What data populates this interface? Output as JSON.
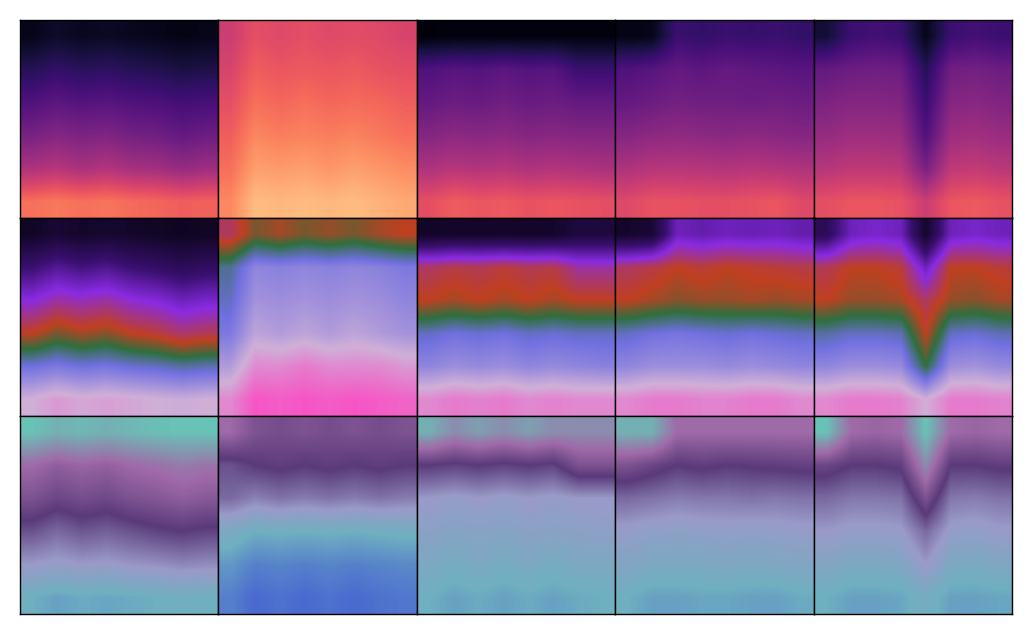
{
  "chart_data": [
    {
      "type": "heatmap",
      "clim": [
        0,
        1
      ],
      "tick_labels": false,
      "cells": [
        [
          0.05,
          0.08,
          0.06,
          0.07,
          0.06,
          0.05,
          0.04,
          0.05
        ],
        [
          0.15,
          0.18,
          0.16,
          0.17,
          0.15,
          0.14,
          0.12,
          0.13
        ],
        [
          0.25,
          0.28,
          0.26,
          0.27,
          0.25,
          0.24,
          0.22,
          0.23
        ],
        [
          0.35,
          0.38,
          0.36,
          0.37,
          0.34,
          0.33,
          0.3,
          0.32
        ],
        [
          0.48,
          0.5,
          0.47,
          0.49,
          0.46,
          0.45,
          0.42,
          0.44
        ],
        [
          0.7,
          0.72,
          0.7,
          0.71,
          0.69,
          0.68,
          0.66,
          0.67
        ]
      ]
    },
    {
      "type": "heatmap",
      "clim": [
        0,
        1
      ],
      "tick_labels": false,
      "cells": [
        [
          0.55,
          0.62,
          0.6,
          0.62,
          0.6,
          0.61,
          0.6,
          0.58
        ],
        [
          0.58,
          0.66,
          0.64,
          0.65,
          0.64,
          0.65,
          0.63,
          0.62
        ],
        [
          0.62,
          0.7,
          0.68,
          0.7,
          0.68,
          0.69,
          0.68,
          0.66
        ],
        [
          0.66,
          0.75,
          0.73,
          0.74,
          0.73,
          0.74,
          0.72,
          0.7
        ],
        [
          0.7,
          0.8,
          0.79,
          0.8,
          0.78,
          0.8,
          0.78,
          0.76
        ],
        [
          0.75,
          0.86,
          0.85,
          0.86,
          0.85,
          0.86,
          0.84,
          0.82
        ]
      ]
    },
    {
      "type": "heatmap",
      "clim": [
        0,
        1
      ],
      "tick_labels": false,
      "cells": [
        [
          0.02,
          0.03,
          0.03,
          0.03,
          0.03,
          0.03,
          0.03,
          0.03
        ],
        [
          0.25,
          0.27,
          0.26,
          0.28,
          0.26,
          0.27,
          0.2,
          0.2
        ],
        [
          0.3,
          0.32,
          0.31,
          0.33,
          0.31,
          0.32,
          0.3,
          0.3
        ],
        [
          0.38,
          0.4,
          0.39,
          0.4,
          0.38,
          0.39,
          0.38,
          0.38
        ],
        [
          0.48,
          0.5,
          0.49,
          0.5,
          0.48,
          0.49,
          0.48,
          0.47
        ],
        [
          0.62,
          0.66,
          0.64,
          0.65,
          0.63,
          0.64,
          0.63,
          0.62
        ]
      ]
    },
    {
      "type": "heatmap",
      "clim": [
        0,
        1
      ],
      "tick_labels": false,
      "cells": [
        [
          0.04,
          0.05,
          0.2,
          0.18,
          0.2,
          0.19,
          0.2,
          0.18
        ],
        [
          0.25,
          0.27,
          0.3,
          0.28,
          0.3,
          0.29,
          0.28,
          0.27
        ],
        [
          0.3,
          0.32,
          0.34,
          0.33,
          0.33,
          0.32,
          0.33,
          0.32
        ],
        [
          0.38,
          0.4,
          0.41,
          0.4,
          0.39,
          0.4,
          0.39,
          0.38
        ],
        [
          0.48,
          0.5,
          0.5,
          0.5,
          0.49,
          0.5,
          0.49,
          0.48
        ],
        [
          0.6,
          0.63,
          0.63,
          0.62,
          0.62,
          0.63,
          0.64,
          0.6
        ]
      ]
    },
    {
      "type": "heatmap",
      "clim": [
        0,
        1
      ],
      "tick_labels": false,
      "cells": [
        [
          0.1,
          0.2,
          0.22,
          0.2,
          0.05,
          0.2,
          0.22,
          0.2
        ],
        [
          0.3,
          0.32,
          0.33,
          0.32,
          0.15,
          0.33,
          0.34,
          0.32
        ],
        [
          0.36,
          0.38,
          0.38,
          0.37,
          0.2,
          0.38,
          0.39,
          0.37
        ],
        [
          0.42,
          0.44,
          0.44,
          0.43,
          0.25,
          0.44,
          0.45,
          0.43
        ],
        [
          0.5,
          0.52,
          0.52,
          0.51,
          0.35,
          0.52,
          0.53,
          0.51
        ],
        [
          0.62,
          0.64,
          0.64,
          0.63,
          0.55,
          0.64,
          0.65,
          0.63
        ]
      ]
    },
    {
      "type": "heatmap",
      "clim": [
        0,
        1
      ],
      "tick_labels": false,
      "cells": [
        [
          0.05,
          0.08,
          0.06,
          0.07,
          0.06,
          0.05,
          0.04,
          0.05
        ],
        [
          0.2,
          0.25,
          0.22,
          0.24,
          0.2,
          0.18,
          0.15,
          0.17
        ],
        [
          0.35,
          0.4,
          0.38,
          0.4,
          0.36,
          0.34,
          0.3,
          0.32
        ],
        [
          0.5,
          0.55,
          0.52,
          0.54,
          0.5,
          0.48,
          0.44,
          0.46
        ],
        [
          0.7,
          0.72,
          0.7,
          0.71,
          0.69,
          0.68,
          0.66,
          0.67
        ],
        [
          0.85,
          0.88,
          0.86,
          0.87,
          0.86,
          0.85,
          0.84,
          0.85
        ]
      ]
    },
    {
      "type": "heatmap",
      "clim": [
        0,
        1
      ],
      "tick_labels": false,
      "cells": [
        [
          0.45,
          0.55,
          0.52,
          0.55,
          0.53,
          0.55,
          0.52,
          0.5
        ],
        [
          0.65,
          0.75,
          0.74,
          0.75,
          0.74,
          0.75,
          0.74,
          0.72
        ],
        [
          0.68,
          0.78,
          0.77,
          0.78,
          0.77,
          0.78,
          0.77,
          0.75
        ],
        [
          0.72,
          0.82,
          0.8,
          0.82,
          0.8,
          0.82,
          0.8,
          0.78
        ],
        [
          0.8,
          0.9,
          0.9,
          0.92,
          0.9,
          0.9,
          0.9,
          0.88
        ],
        [
          0.9,
          0.97,
          0.96,
          0.97,
          0.96,
          0.97,
          0.96,
          0.95
        ]
      ]
    },
    {
      "type": "heatmap",
      "clim": [
        0,
        1
      ],
      "tick_labels": false,
      "cells": [
        [
          0.05,
          0.06,
          0.06,
          0.06,
          0.06,
          0.06,
          0.1,
          0.1
        ],
        [
          0.45,
          0.47,
          0.46,
          0.48,
          0.46,
          0.47,
          0.4,
          0.4
        ],
        [
          0.5,
          0.52,
          0.5,
          0.52,
          0.5,
          0.52,
          0.5,
          0.5
        ],
        [
          0.68,
          0.7,
          0.69,
          0.7,
          0.68,
          0.69,
          0.68,
          0.68
        ],
        [
          0.75,
          0.77,
          0.76,
          0.77,
          0.75,
          0.76,
          0.75,
          0.74
        ],
        [
          0.9,
          0.92,
          0.91,
          0.92,
          0.9,
          0.91,
          0.9,
          0.9
        ]
      ]
    },
    {
      "type": "heatmap",
      "clim": [
        0,
        1
      ],
      "tick_labels": false,
      "cells": [
        [
          0.06,
          0.08,
          0.3,
          0.28,
          0.3,
          0.29,
          0.3,
          0.28
        ],
        [
          0.45,
          0.47,
          0.5,
          0.48,
          0.5,
          0.49,
          0.48,
          0.47
        ],
        [
          0.5,
          0.52,
          0.54,
          0.53,
          0.53,
          0.52,
          0.53,
          0.52
        ],
        [
          0.68,
          0.7,
          0.71,
          0.7,
          0.69,
          0.7,
          0.69,
          0.68
        ],
        [
          0.75,
          0.77,
          0.77,
          0.77,
          0.76,
          0.77,
          0.76,
          0.75
        ],
        [
          0.9,
          0.92,
          0.92,
          0.91,
          0.91,
          0.92,
          0.92,
          0.9
        ]
      ]
    },
    {
      "type": "heatmap",
      "clim": [
        0,
        1
      ],
      "tick_labels": false,
      "cells": [
        [
          0.15,
          0.3,
          0.32,
          0.3,
          0.06,
          0.3,
          0.32,
          0.3
        ],
        [
          0.46,
          0.5,
          0.5,
          0.48,
          0.3,
          0.5,
          0.5,
          0.48
        ],
        [
          0.5,
          0.53,
          0.53,
          0.52,
          0.45,
          0.53,
          0.54,
          0.52
        ],
        [
          0.66,
          0.68,
          0.68,
          0.67,
          0.5,
          0.68,
          0.69,
          0.67
        ],
        [
          0.75,
          0.77,
          0.77,
          0.76,
          0.6,
          0.77,
          0.78,
          0.76
        ],
        [
          0.9,
          0.92,
          0.92,
          0.91,
          0.85,
          0.92,
          0.92,
          0.91
        ]
      ]
    },
    {
      "type": "heatmap",
      "clim": [
        0,
        1
      ],
      "tick_labels": false,
      "cells": [
        [
          0.05,
          0.1,
          0.08,
          0.1,
          0.08,
          0.06,
          0.05,
          0.05
        ],
        [
          0.3,
          0.35,
          0.32,
          0.34,
          0.3,
          0.28,
          0.25,
          0.27
        ],
        [
          0.4,
          0.45,
          0.42,
          0.44,
          0.4,
          0.38,
          0.35,
          0.37
        ],
        [
          0.55,
          0.6,
          0.56,
          0.58,
          0.55,
          0.52,
          0.5,
          0.52
        ],
        [
          0.7,
          0.72,
          0.7,
          0.71,
          0.69,
          0.68,
          0.66,
          0.67
        ],
        [
          0.85,
          0.88,
          0.86,
          0.87,
          0.86,
          0.85,
          0.84,
          0.85
        ]
      ]
    },
    {
      "type": "heatmap",
      "clim": [
        0,
        1
      ],
      "tick_labels": false,
      "cells": [
        [
          0.3,
          0.4,
          0.42,
          0.4,
          0.42,
          0.4,
          0.42,
          0.4
        ],
        [
          0.55,
          0.5,
          0.48,
          0.5,
          0.48,
          0.5,
          0.48,
          0.5
        ],
        [
          0.6,
          0.65,
          0.62,
          0.64,
          0.62,
          0.64,
          0.62,
          0.64
        ],
        [
          0.8,
          0.85,
          0.84,
          0.85,
          0.84,
          0.85,
          0.84,
          0.83
        ],
        [
          0.9,
          0.95,
          0.94,
          0.95,
          0.94,
          0.95,
          0.94,
          0.93
        ],
        [
          0.95,
          1.0,
          0.98,
          1.0,
          0.98,
          1.0,
          0.98,
          0.97
        ]
      ]
    },
    {
      "type": "heatmap",
      "clim": [
        0,
        1
      ],
      "tick_labels": false,
      "cells": [
        [
          0.1,
          0.2,
          0.15,
          0.2,
          0.15,
          0.2,
          0.2,
          0.2
        ],
        [
          0.5,
          0.52,
          0.5,
          0.52,
          0.5,
          0.52,
          0.4,
          0.4
        ],
        [
          0.7,
          0.72,
          0.7,
          0.72,
          0.7,
          0.72,
          0.7,
          0.7
        ],
        [
          0.75,
          0.77,
          0.76,
          0.77,
          0.75,
          0.76,
          0.75,
          0.74
        ],
        [
          0.8,
          0.82,
          0.8,
          0.82,
          0.8,
          0.82,
          0.8,
          0.8
        ],
        [
          0.85,
          0.88,
          0.86,
          0.88,
          0.86,
          0.88,
          0.86,
          0.85
        ]
      ]
    },
    {
      "type": "heatmap",
      "clim": [
        0,
        1
      ],
      "tick_labels": false,
      "cells": [
        [
          0.1,
          0.1,
          0.3,
          0.3,
          0.3,
          0.3,
          0.3,
          0.3
        ],
        [
          0.4,
          0.45,
          0.5,
          0.48,
          0.5,
          0.49,
          0.48,
          0.47
        ],
        [
          0.6,
          0.62,
          0.64,
          0.63,
          0.63,
          0.62,
          0.63,
          0.62
        ],
        [
          0.72,
          0.74,
          0.75,
          0.74,
          0.73,
          0.74,
          0.73,
          0.72
        ],
        [
          0.78,
          0.8,
          0.8,
          0.8,
          0.79,
          0.8,
          0.79,
          0.78
        ],
        [
          0.85,
          0.88,
          0.88,
          0.87,
          0.87,
          0.88,
          0.88,
          0.86
        ]
      ]
    },
    {
      "type": "heatmap",
      "clim": [
        0,
        1
      ],
      "tick_labels": false,
      "cells": [
        [
          0.05,
          0.3,
          0.32,
          0.3,
          0.05,
          0.3,
          0.32,
          0.3
        ],
        [
          0.45,
          0.5,
          0.5,
          0.48,
          0.2,
          0.5,
          0.5,
          0.48
        ],
        [
          0.6,
          0.63,
          0.63,
          0.62,
          0.4,
          0.63,
          0.64,
          0.62
        ],
        [
          0.7,
          0.72,
          0.72,
          0.71,
          0.6,
          0.72,
          0.73,
          0.71
        ],
        [
          0.78,
          0.8,
          0.8,
          0.79,
          0.7,
          0.8,
          0.81,
          0.79
        ],
        [
          0.85,
          0.88,
          0.88,
          0.87,
          0.82,
          0.88,
          0.88,
          0.87
        ]
      ]
    }
  ]
}
